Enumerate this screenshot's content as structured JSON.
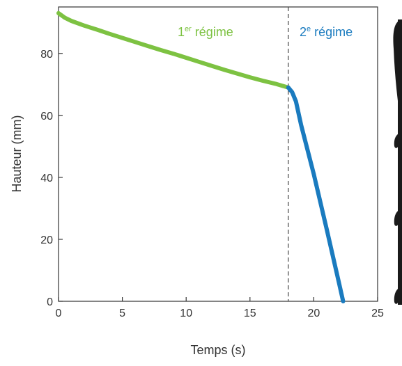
{
  "colors": {
    "regime1": "#7dc242",
    "regime2": "#1a7bbf",
    "axis": "#333333",
    "separator": "#444444",
    "photo_dark": "#1a1a1a"
  },
  "chart_data": {
    "type": "line",
    "xlabel": "Temps (s)",
    "ylabel": "Hauteur (mm)",
    "xlim": [
      0,
      25
    ],
    "ylim": [
      0,
      95
    ],
    "xticks": [
      0,
      5,
      10,
      15,
      20,
      25
    ],
    "yticks": [
      0,
      20,
      40,
      60,
      80
    ],
    "grid": false,
    "annotations": [
      {
        "base": "1",
        "sup": "er",
        "text": " régime",
        "series": "regime1"
      },
      {
        "base": "2",
        "sup": "e",
        "text": " régime",
        "series": "regime2"
      }
    ],
    "separator_x": 18,
    "series": [
      {
        "key": "regime1",
        "x": [
          0,
          0.5,
          1,
          2,
          3,
          4,
          5,
          6,
          7,
          8,
          9,
          10,
          11,
          12,
          13,
          14,
          15,
          16,
          17,
          17.5,
          18
        ],
        "y": [
          93,
          91.5,
          90.5,
          89,
          87.7,
          86.3,
          85,
          83.7,
          82.4,
          81.1,
          79.9,
          78.6,
          77.3,
          76,
          74.7,
          73.5,
          72.3,
          71.2,
          70.2,
          69.6,
          69
        ]
      },
      {
        "key": "regime2",
        "x": [
          18,
          18.3,
          18.6,
          19,
          20,
          21,
          22,
          22.3
        ],
        "y": [
          69,
          67.5,
          64.5,
          57,
          41,
          23.5,
          5.5,
          0
        ]
      }
    ]
  }
}
